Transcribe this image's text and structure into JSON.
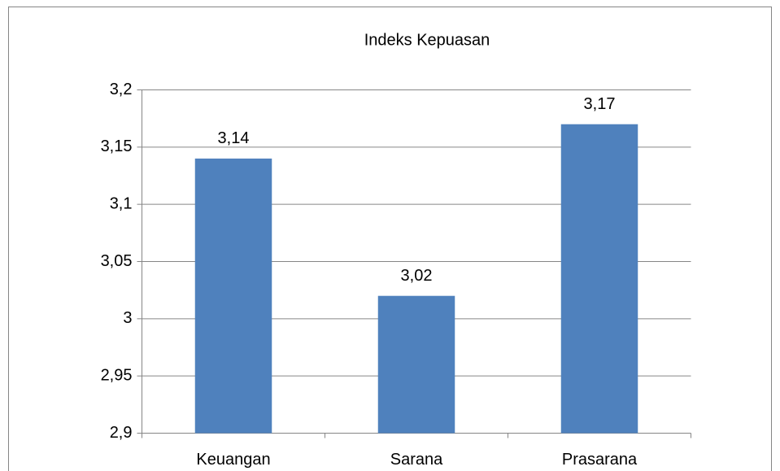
{
  "chart_data": {
    "type": "bar",
    "title": "Indeks Kepuasan",
    "categories": [
      "Keuangan",
      "Sarana",
      "Prasarana"
    ],
    "values": [
      3.14,
      3.02,
      3.17
    ],
    "value_labels": [
      "3,14",
      "3,02",
      "3,17"
    ],
    "color": "#4f81bd",
    "ylim": [
      2.9,
      3.2
    ],
    "yticks": [
      {
        "value": 2.9,
        "label": "2,9"
      },
      {
        "value": 2.95,
        "label": "2,95"
      },
      3,
      {
        "value": 3.05,
        "label": "3,05"
      },
      {
        "value": 3.1,
        "label": "3,1"
      },
      {
        "value": 3.15,
        "label": "3,15"
      },
      {
        "value": 3.2,
        "label": "3,2"
      }
    ],
    "grid": true
  }
}
